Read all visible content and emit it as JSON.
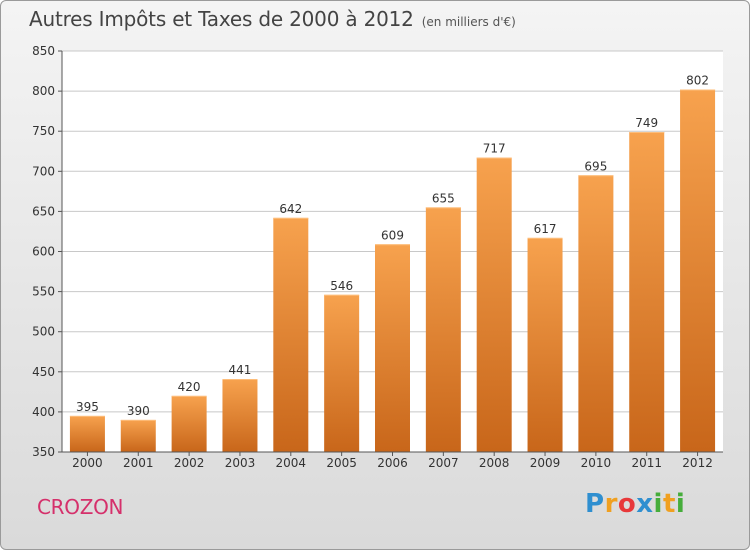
{
  "chart_title": "Autres Impôts et Taxes de 2000 à 2012",
  "chart_subtitle": "(en milliers d'€)",
  "commune": "CROZON",
  "brand": {
    "letters": [
      "P",
      "r",
      "o",
      "x",
      "i",
      "t",
      "i"
    ],
    "colors": [
      "#2f8fd0",
      "#f0a020",
      "#e8383a",
      "#2f8fd0",
      "#46ad3b",
      "#f0a020",
      "#46ad3b"
    ]
  },
  "colors": {
    "bar_light": "#f7a24e",
    "bar_dark": "#c8661a",
    "commune": "#d5306b",
    "grid": "#c8c8c8",
    "axis": "#555555"
  },
  "chart_data": {
    "type": "bar",
    "categories": [
      "2000",
      "2001",
      "2002",
      "2003",
      "2004",
      "2005",
      "2006",
      "2007",
      "2008",
      "2009",
      "2010",
      "2011",
      "2012"
    ],
    "values": [
      395,
      390,
      420,
      441,
      642,
      546,
      609,
      655,
      717,
      617,
      695,
      749,
      802
    ],
    "ylim": [
      350,
      850
    ],
    "yticks": [
      350,
      400,
      450,
      500,
      550,
      600,
      650,
      700,
      750,
      800,
      850
    ],
    "grid": true,
    "title": "Autres Impôts et Taxes de 2000 à 2012",
    "subtitle": "(en milliers d'€)"
  }
}
